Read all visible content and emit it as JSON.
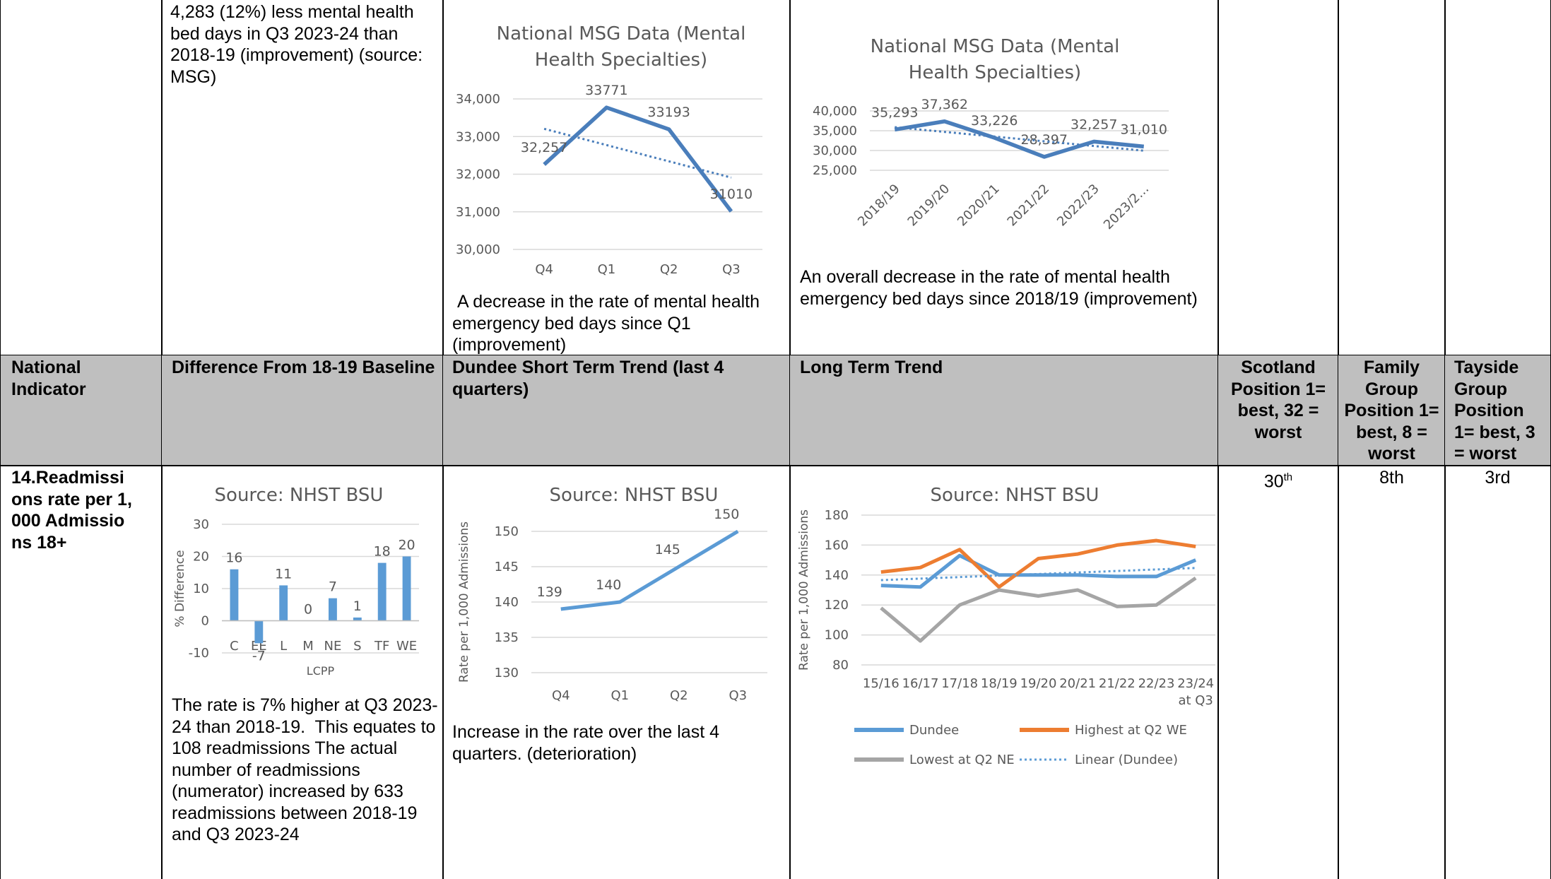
{
  "top_row": {
    "baseline_text": "4,283 (12%) less mental health bed days in Q3 2023-24 than 2018-19 (improvement) (source: MSG)",
    "short_term": {
      "chart_data": {
        "type": "line",
        "title": "National MSG Data (Mental Health Specialties)",
        "categories": [
          "Q4",
          "Q1",
          "Q2",
          "Q3"
        ],
        "values": [
          32257,
          33771,
          33193,
          31010
        ],
        "value_labels": [
          "32,257",
          "33771",
          "33193",
          "31010"
        ],
        "color": "#4a7ebb",
        "trendline": true,
        "ylim": [
          30000,
          34000
        ],
        "yticks": [
          {
            "value": 30000,
            "label": "30,000"
          },
          {
            "value": 31000,
            "label": "31,000"
          },
          {
            "value": 32000,
            "label": "32,000"
          },
          {
            "value": 33000,
            "label": "33,000"
          },
          {
            "value": 34000,
            "label": "34,000"
          }
        ],
        "grid": true
      },
      "caption": " A decrease in the rate of mental health emergency bed days since Q1 (improvement)"
    },
    "long_term": {
      "chart_data": {
        "type": "line",
        "title": "National MSG Data (Mental Health Specialties)",
        "categories": [
          "2018/19",
          "2019/20",
          "2020/21",
          "2021/22",
          "2022/23",
          "2023/2…"
        ],
        "values": [
          35293,
          37362,
          33226,
          28397,
          32257,
          31010
        ],
        "value_labels": [
          "35,293",
          "37,362",
          "33,226",
          "28,397",
          "32,257",
          "31,010"
        ],
        "color": "#4a7ebb",
        "trendline": true,
        "ylim": [
          25000,
          40000
        ],
        "yticks": [
          {
            "value": 25000,
            "label": "25,000"
          },
          {
            "value": 30000,
            "label": "30,000"
          },
          {
            "value": 35000,
            "label": "35,000"
          },
          {
            "value": 40000,
            "label": "40,000"
          }
        ],
        "grid": true,
        "rotate_labels": true
      },
      "caption": "An overall decrease in the rate of mental health emergency bed days since 2018/19 (improvement)"
    }
  },
  "header": {
    "cells": [
      "National Indicator",
      "Difference From 18-19 Baseline",
      "Dundee Short Term Trend (last 4 quarters)",
      "Long Term Trend",
      "Scotland Position 1= best, 32 = worst",
      "Family Group Position 1= best, 8 = worst",
      "Tayside Group Position 1= best, 3 = worst"
    ]
  },
  "indicator_row": {
    "indicator": "14.Readmissions rate per 1,000 Admissions 18+",
    "baseline": {
      "chart_data": {
        "type": "bar",
        "title": "Source: NHST BSU",
        "y_label": "% Difference",
        "x_label": "LCPP",
        "categories": [
          "C",
          "EE",
          "L",
          "M",
          "NE",
          "S",
          "TF",
          "WE"
        ],
        "values": [
          16,
          -7,
          11,
          0,
          7,
          1,
          18,
          20
        ],
        "color": "#5b9bd5",
        "ylim": [
          -10,
          30
        ],
        "yticks": [
          -10,
          0,
          10,
          20,
          30
        ],
        "grid": true
      },
      "text": "The rate is 7% higher at Q3 2023-24 than 2018-19.  This equates to 108 readmissions The actual number of readmissions (numerator) increased by 633 readmissions between 2018-19 and Q3 2023-24"
    },
    "short_term": {
      "chart_data": {
        "type": "line",
        "title": "Source: NHST BSU",
        "y_label": "Rate per 1,000 Admissions",
        "categories": [
          "Q4",
          "Q1",
          "Q2",
          "Q3"
        ],
        "values": [
          139,
          140,
          145,
          150
        ],
        "color": "#5b9bd5",
        "ylim": [
          130,
          150
        ],
        "yticks": [
          130,
          135,
          140,
          145,
          150
        ],
        "grid": true
      },
      "caption": "Increase in the rate over the last 4 quarters. (deterioration)"
    },
    "long_term": {
      "chart_data": {
        "type": "line",
        "title": "Source: NHST BSU",
        "y_label": "Rate per 1,000 Admissions",
        "categories": [
          "15/16",
          "16/17",
          "17/18",
          "18/19",
          "19/20",
          "20/21",
          "21/22",
          "22/23",
          "23/24 at Q3"
        ],
        "series": [
          {
            "name": "Dundee",
            "color": "#5b9bd5",
            "values": [
              133,
              132,
              153,
              140,
              140,
              140,
              139,
              139,
              150
            ]
          },
          {
            "name": "Highest at Q2 WE",
            "color": "#ed7d31",
            "values": [
              142,
              145,
              157,
              132,
              151,
              154,
              160,
              163,
              159
            ]
          },
          {
            "name": "Lowest at Q2 NE",
            "color": "#a5a5a5",
            "values": [
              118,
              96,
              120,
              130,
              126,
              130,
              119,
              120,
              138
            ]
          }
        ],
        "trendline": {
          "name": "Linear (Dundee)",
          "series": 0
        },
        "ylim": [
          80,
          180
        ],
        "yticks": [
          80,
          100,
          120,
          140,
          160,
          180
        ],
        "grid": true,
        "legend": "bottom"
      }
    },
    "scotland_position": {
      "number": "30",
      "suffix": "th"
    },
    "family_position": "8th",
    "tayside_position": "3rd"
  }
}
